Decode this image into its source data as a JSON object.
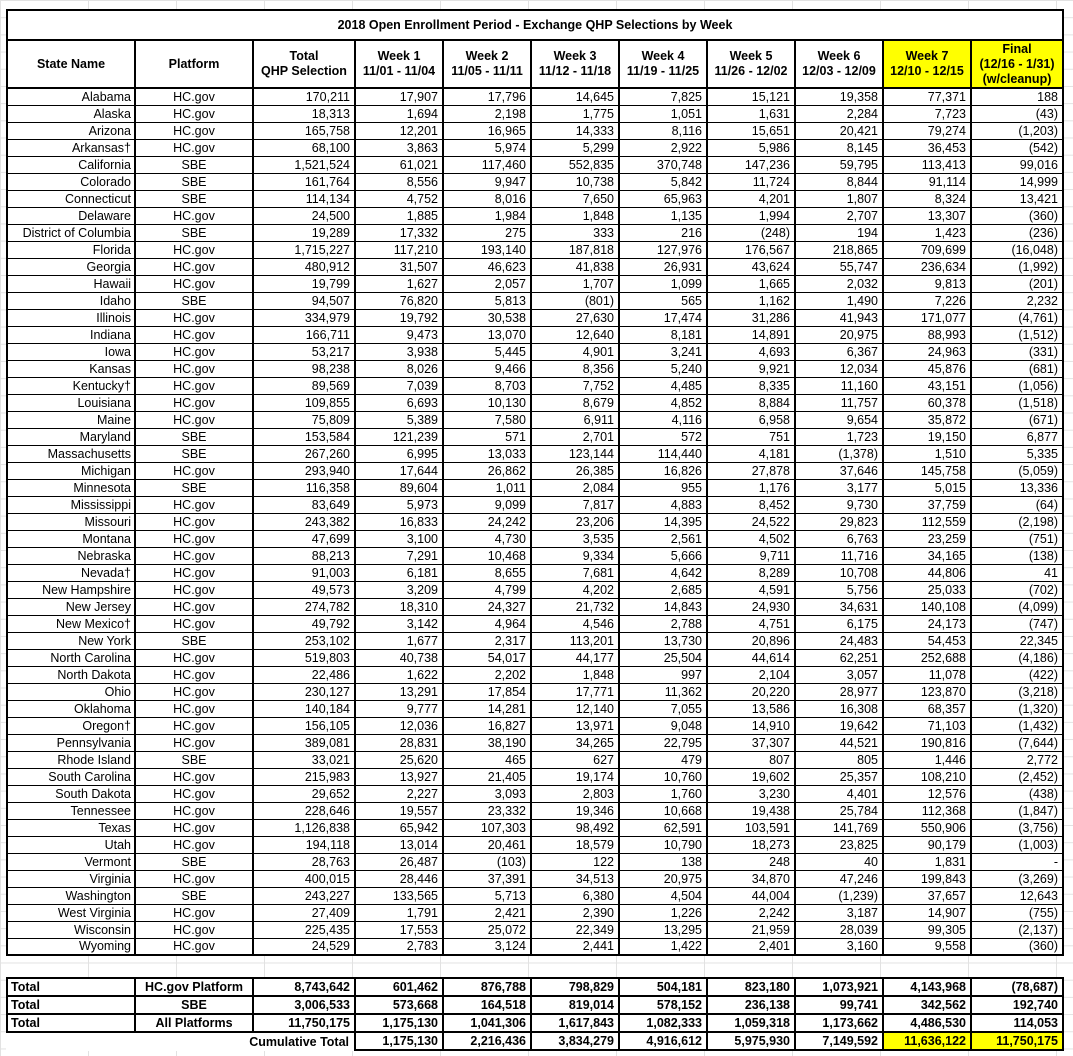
{
  "title": "2018 Open Enrollment Period - Exchange QHP Selections by Week",
  "colors": {
    "highlight": "#FFFF00",
    "border": "#000000",
    "gridline": "#e2e2e2"
  },
  "table": {
    "columns": [
      {
        "lines": [
          "State Name"
        ],
        "highlight": false
      },
      {
        "lines": [
          "Platform"
        ],
        "highlight": false
      },
      {
        "lines": [
          "Total",
          "QHP Selection"
        ],
        "highlight": false
      },
      {
        "lines": [
          "Week 1",
          "11/01 - 11/04"
        ],
        "highlight": false
      },
      {
        "lines": [
          "Week 2",
          "11/05 - 11/11"
        ],
        "highlight": false
      },
      {
        "lines": [
          "Week 3",
          "11/12 - 11/18"
        ],
        "highlight": false
      },
      {
        "lines": [
          "Week 4",
          "11/19 - 11/25"
        ],
        "highlight": false
      },
      {
        "lines": [
          "Week 5",
          "11/26 - 12/02"
        ],
        "highlight": false
      },
      {
        "lines": [
          "Week 6",
          "12/03 - 12/09"
        ],
        "highlight": false
      },
      {
        "lines": [
          "Week 7",
          "12/10 - 12/15"
        ],
        "highlight": true
      },
      {
        "lines": [
          "Final",
          "(12/16 - 1/31)",
          "(w/cleanup)"
        ],
        "highlight": true
      }
    ],
    "rows": [
      {
        "state": "Alabama",
        "platform": "HC.gov",
        "values": [
          "170,211",
          "17,907",
          "17,796",
          "14,645",
          "7,825",
          "15,121",
          "19,358",
          "77,371",
          "188"
        ]
      },
      {
        "state": "Alaska",
        "platform": "HC.gov",
        "values": [
          "18,313",
          "1,694",
          "2,198",
          "1,775",
          "1,051",
          "1,631",
          "2,284",
          "7,723",
          "(43)"
        ]
      },
      {
        "state": "Arizona",
        "platform": "HC.gov",
        "values": [
          "165,758",
          "12,201",
          "16,965",
          "14,333",
          "8,116",
          "15,651",
          "20,421",
          "79,274",
          "(1,203)"
        ]
      },
      {
        "state": "Arkansas†",
        "platform": "HC.gov",
        "values": [
          "68,100",
          "3,863",
          "5,974",
          "5,299",
          "2,922",
          "5,986",
          "8,145",
          "36,453",
          "(542)"
        ]
      },
      {
        "state": "California",
        "platform": "SBE",
        "values": [
          "1,521,524",
          "61,021",
          "117,460",
          "552,835",
          "370,748",
          "147,236",
          "59,795",
          "113,413",
          "99,016"
        ]
      },
      {
        "state": "Colorado",
        "platform": "SBE",
        "values": [
          "161,764",
          "8,556",
          "9,947",
          "10,738",
          "5,842",
          "11,724",
          "8,844",
          "91,114",
          "14,999"
        ]
      },
      {
        "state": "Connecticut",
        "platform": "SBE",
        "values": [
          "114,134",
          "4,752",
          "8,016",
          "7,650",
          "65,963",
          "4,201",
          "1,807",
          "8,324",
          "13,421"
        ]
      },
      {
        "state": "Delaware",
        "platform": "HC.gov",
        "values": [
          "24,500",
          "1,885",
          "1,984",
          "1,848",
          "1,135",
          "1,994",
          "2,707",
          "13,307",
          "(360)"
        ]
      },
      {
        "state": "District of Columbia",
        "platform": "SBE",
        "values": [
          "19,289",
          "17,332",
          "275",
          "333",
          "216",
          "(248)",
          "194",
          "1,423",
          "(236)"
        ]
      },
      {
        "state": "Florida",
        "platform": "HC.gov",
        "values": [
          "1,715,227",
          "117,210",
          "193,140",
          "187,818",
          "127,976",
          "176,567",
          "218,865",
          "709,699",
          "(16,048)"
        ]
      },
      {
        "state": "Georgia",
        "platform": "HC.gov",
        "values": [
          "480,912",
          "31,507",
          "46,623",
          "41,838",
          "26,931",
          "43,624",
          "55,747",
          "236,634",
          "(1,992)"
        ]
      },
      {
        "state": "Hawaii",
        "platform": "HC.gov",
        "values": [
          "19,799",
          "1,627",
          "2,057",
          "1,707",
          "1,099",
          "1,665",
          "2,032",
          "9,813",
          "(201)"
        ]
      },
      {
        "state": "Idaho",
        "platform": "SBE",
        "values": [
          "94,507",
          "76,820",
          "5,813",
          "(801)",
          "565",
          "1,162",
          "1,490",
          "7,226",
          "2,232"
        ]
      },
      {
        "state": "Illinois",
        "platform": "HC.gov",
        "values": [
          "334,979",
          "19,792",
          "30,538",
          "27,630",
          "17,474",
          "31,286",
          "41,943",
          "171,077",
          "(4,761)"
        ]
      },
      {
        "state": "Indiana",
        "platform": "HC.gov",
        "values": [
          "166,711",
          "9,473",
          "13,070",
          "12,640",
          "8,181",
          "14,891",
          "20,975",
          "88,993",
          "(1,512)"
        ]
      },
      {
        "state": "Iowa",
        "platform": "HC.gov",
        "values": [
          "53,217",
          "3,938",
          "5,445",
          "4,901",
          "3,241",
          "4,693",
          "6,367",
          "24,963",
          "(331)"
        ]
      },
      {
        "state": "Kansas",
        "platform": "HC.gov",
        "values": [
          "98,238",
          "8,026",
          "9,466",
          "8,356",
          "5,240",
          "9,921",
          "12,034",
          "45,876",
          "(681)"
        ]
      },
      {
        "state": "Kentucky†",
        "platform": "HC.gov",
        "values": [
          "89,569",
          "7,039",
          "8,703",
          "7,752",
          "4,485",
          "8,335",
          "11,160",
          "43,151",
          "(1,056)"
        ]
      },
      {
        "state": "Louisiana",
        "platform": "HC.gov",
        "values": [
          "109,855",
          "6,693",
          "10,130",
          "8,679",
          "4,852",
          "8,884",
          "11,757",
          "60,378",
          "(1,518)"
        ]
      },
      {
        "state": "Maine",
        "platform": "HC.gov",
        "values": [
          "75,809",
          "5,389",
          "7,580",
          "6,911",
          "4,116",
          "6,958",
          "9,654",
          "35,872",
          "(671)"
        ]
      },
      {
        "state": "Maryland",
        "platform": "SBE",
        "values": [
          "153,584",
          "121,239",
          "571",
          "2,701",
          "572",
          "751",
          "1,723",
          "19,150",
          "6,877"
        ]
      },
      {
        "state": "Massachusetts",
        "platform": "SBE",
        "values": [
          "267,260",
          "6,995",
          "13,033",
          "123,144",
          "114,440",
          "4,181",
          "(1,378)",
          "1,510",
          "5,335"
        ]
      },
      {
        "state": "Michigan",
        "platform": "HC.gov",
        "values": [
          "293,940",
          "17,644",
          "26,862",
          "26,385",
          "16,826",
          "27,878",
          "37,646",
          "145,758",
          "(5,059)"
        ]
      },
      {
        "state": "Minnesota",
        "platform": "SBE",
        "values": [
          "116,358",
          "89,604",
          "1,011",
          "2,084",
          "955",
          "1,176",
          "3,177",
          "5,015",
          "13,336"
        ]
      },
      {
        "state": "Mississippi",
        "platform": "HC.gov",
        "values": [
          "83,649",
          "5,973",
          "9,099",
          "7,817",
          "4,883",
          "8,452",
          "9,730",
          "37,759",
          "(64)"
        ]
      },
      {
        "state": "Missouri",
        "platform": "HC.gov",
        "values": [
          "243,382",
          "16,833",
          "24,242",
          "23,206",
          "14,395",
          "24,522",
          "29,823",
          "112,559",
          "(2,198)"
        ]
      },
      {
        "state": "Montana",
        "platform": "HC.gov",
        "values": [
          "47,699",
          "3,100",
          "4,730",
          "3,535",
          "2,561",
          "4,502",
          "6,763",
          "23,259",
          "(751)"
        ]
      },
      {
        "state": "Nebraska",
        "platform": "HC.gov",
        "values": [
          "88,213",
          "7,291",
          "10,468",
          "9,334",
          "5,666",
          "9,711",
          "11,716",
          "34,165",
          "(138)"
        ]
      },
      {
        "state": "Nevada†",
        "platform": "HC.gov",
        "values": [
          "91,003",
          "6,181",
          "8,655",
          "7,681",
          "4,642",
          "8,289",
          "10,708",
          "44,806",
          "41"
        ]
      },
      {
        "state": "New Hampshire",
        "platform": "HC.gov",
        "values": [
          "49,573",
          "3,209",
          "4,799",
          "4,202",
          "2,685",
          "4,591",
          "5,756",
          "25,033",
          "(702)"
        ]
      },
      {
        "state": "New Jersey",
        "platform": "HC.gov",
        "values": [
          "274,782",
          "18,310",
          "24,327",
          "21,732",
          "14,843",
          "24,930",
          "34,631",
          "140,108",
          "(4,099)"
        ]
      },
      {
        "state": "New Mexico†",
        "platform": "HC.gov",
        "values": [
          "49,792",
          "3,142",
          "4,964",
          "4,546",
          "2,788",
          "4,751",
          "6,175",
          "24,173",
          "(747)"
        ]
      },
      {
        "state": "New York",
        "platform": "SBE",
        "values": [
          "253,102",
          "1,677",
          "2,317",
          "113,201",
          "13,730",
          "20,896",
          "24,483",
          "54,453",
          "22,345"
        ]
      },
      {
        "state": "North Carolina",
        "platform": "HC.gov",
        "values": [
          "519,803",
          "40,738",
          "54,017",
          "44,177",
          "25,504",
          "44,614",
          "62,251",
          "252,688",
          "(4,186)"
        ]
      },
      {
        "state": "North Dakota",
        "platform": "HC.gov",
        "values": [
          "22,486",
          "1,622",
          "2,202",
          "1,848",
          "997",
          "2,104",
          "3,057",
          "11,078",
          "(422)"
        ]
      },
      {
        "state": "Ohio",
        "platform": "HC.gov",
        "values": [
          "230,127",
          "13,291",
          "17,854",
          "17,771",
          "11,362",
          "20,220",
          "28,977",
          "123,870",
          "(3,218)"
        ]
      },
      {
        "state": "Oklahoma",
        "platform": "HC.gov",
        "values": [
          "140,184",
          "9,777",
          "14,281",
          "12,140",
          "7,055",
          "13,586",
          "16,308",
          "68,357",
          "(1,320)"
        ]
      },
      {
        "state": "Oregon†",
        "platform": "HC.gov",
        "values": [
          "156,105",
          "12,036",
          "16,827",
          "13,971",
          "9,048",
          "14,910",
          "19,642",
          "71,103",
          "(1,432)"
        ]
      },
      {
        "state": "Pennsylvania",
        "platform": "HC.gov",
        "values": [
          "389,081",
          "28,831",
          "38,190",
          "34,265",
          "22,795",
          "37,307",
          "44,521",
          "190,816",
          "(7,644)"
        ]
      },
      {
        "state": "Rhode Island",
        "platform": "SBE",
        "values": [
          "33,021",
          "25,620",
          "465",
          "627",
          "479",
          "807",
          "805",
          "1,446",
          "2,772"
        ]
      },
      {
        "state": "South Carolina",
        "platform": "HC.gov",
        "values": [
          "215,983",
          "13,927",
          "21,405",
          "19,174",
          "10,760",
          "19,602",
          "25,357",
          "108,210",
          "(2,452)"
        ]
      },
      {
        "state": "South Dakota",
        "platform": "HC.gov",
        "values": [
          "29,652",
          "2,227",
          "3,093",
          "2,803",
          "1,760",
          "3,230",
          "4,401",
          "12,576",
          "(438)"
        ]
      },
      {
        "state": "Tennessee",
        "platform": "HC.gov",
        "values": [
          "228,646",
          "19,557",
          "23,332",
          "19,346",
          "10,668",
          "19,438",
          "25,784",
          "112,368",
          "(1,847)"
        ]
      },
      {
        "state": "Texas",
        "platform": "HC.gov",
        "values": [
          "1,126,838",
          "65,942",
          "107,303",
          "98,492",
          "62,591",
          "103,591",
          "141,769",
          "550,906",
          "(3,756)"
        ]
      },
      {
        "state": "Utah",
        "platform": "HC.gov",
        "values": [
          "194,118",
          "13,014",
          "20,461",
          "18,579",
          "10,790",
          "18,273",
          "23,825",
          "90,179",
          "(1,003)"
        ]
      },
      {
        "state": "Vermont",
        "platform": "SBE",
        "values": [
          "28,763",
          "26,487",
          "(103)",
          "122",
          "138",
          "248",
          "40",
          "1,831",
          "-"
        ]
      },
      {
        "state": "Virginia",
        "platform": "HC.gov",
        "values": [
          "400,015",
          "28,446",
          "37,391",
          "34,513",
          "20,975",
          "34,870",
          "47,246",
          "199,843",
          "(3,269)"
        ]
      },
      {
        "state": "Washington",
        "platform": "SBE",
        "values": [
          "243,227",
          "133,565",
          "5,713",
          "6,380",
          "4,504",
          "44,004",
          "(1,239)",
          "37,657",
          "12,643"
        ]
      },
      {
        "state": "West Virginia",
        "platform": "HC.gov",
        "values": [
          "27,409",
          "1,791",
          "2,421",
          "2,390",
          "1,226",
          "2,242",
          "3,187",
          "14,907",
          "(755)"
        ]
      },
      {
        "state": "Wisconsin",
        "platform": "HC.gov",
        "values": [
          "225,435",
          "17,553",
          "25,072",
          "22,349",
          "13,295",
          "21,959",
          "28,039",
          "99,305",
          "(2,137)"
        ]
      },
      {
        "state": "Wyoming",
        "platform": "HC.gov",
        "values": [
          "24,529",
          "2,783",
          "3,124",
          "2,441",
          "1,422",
          "2,401",
          "3,160",
          "9,558",
          "(360)"
        ]
      }
    ]
  },
  "totals": [
    {
      "label": "Total",
      "platform": "HC.gov Platform",
      "values": [
        "8,743,642",
        "601,462",
        "876,788",
        "798,829",
        "504,181",
        "823,180",
        "1,073,921",
        "4,143,968",
        "(78,687)"
      ]
    },
    {
      "label": "Total",
      "platform": "SBE",
      "values": [
        "3,006,533",
        "573,668",
        "164,518",
        "819,014",
        "578,152",
        "236,138",
        "99,741",
        "342,562",
        "192,740"
      ]
    },
    {
      "label": "Total",
      "platform": "All Platforms",
      "values": [
        "11,750,175",
        "1,175,130",
        "1,041,306",
        "1,617,843",
        "1,082,333",
        "1,059,318",
        "1,173,662",
        "4,486,530",
        "114,053"
      ]
    }
  ],
  "cumulative": {
    "label": "Cumulative Total",
    "values": [
      "1,175,130",
      "2,216,436",
      "3,834,279",
      "4,916,612",
      "5,975,930",
      "7,149,592",
      "11,636,122",
      "11,750,175"
    ],
    "highlight_last_n": 2
  }
}
